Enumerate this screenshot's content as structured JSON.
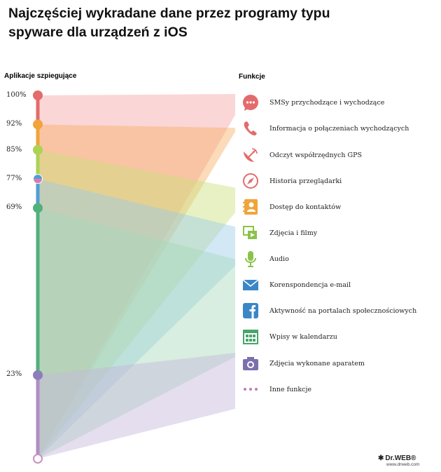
{
  "title": {
    "line1": "Najczęściej wykradane dane przez programy typu",
    "line2": "spyware dla urządzeń z iOS"
  },
  "headings": {
    "axis": "Aplikacje szpiegujące",
    "functions": "Funkcje"
  },
  "chart_data": {
    "type": "area",
    "title": "Najczęściej wykradane dane przez programy typu spyware dla urządzeń z iOS",
    "ylabel": "Aplikacje szpiegujące",
    "ylim": [
      0,
      100
    ],
    "ticks": [
      {
        "value": 100,
        "label": "100%",
        "color": "#e46b6b"
      },
      {
        "value": 92,
        "label": "92%",
        "color": "#f0a43a"
      },
      {
        "value": 85,
        "label": "85%",
        "color": "#acd256"
      },
      {
        "value": 77,
        "label": "77%",
        "color": "#4f9fd4"
      },
      {
        "value": 69,
        "label": "69%",
        "color": "#52b07a"
      },
      {
        "value": 23,
        "label": "23%",
        "color": "#8c7dbd"
      }
    ],
    "categories": [
      "SMSy przychodzące i wychodzące",
      "Informacja o połączeniach wychodzących",
      "Odczyt współrzędnych GPS",
      "Historia przeglądarki",
      "Dostęp do kontaktów",
      "Zdjęcia i filmy",
      "Audio",
      "Korenspondencja e-mail",
      "Aktywność na portalach społecznościowych",
      "Wpisy w kalendarzu",
      "Zdjęcia wykonane aparatem",
      "Inne funkcje"
    ],
    "values": [
      100,
      92,
      85,
      77,
      77,
      77,
      69,
      69,
      69,
      23,
      23,
      23
    ],
    "colors": [
      "#f7a5a7",
      "#f7b063",
      "#c9df7d",
      "#9ccbe8",
      "#a7d9bc",
      "#c5b6da"
    ]
  },
  "functions": [
    {
      "label": "SMSy przychodzące i wychodzące",
      "icon": "chat-bubble-icon",
      "color": "#e46b6b"
    },
    {
      "label": "Informacja o połączeniach wychodzących",
      "icon": "phone-icon",
      "color": "#e46b6b"
    },
    {
      "label": "Odczyt współrzędnych GPS",
      "icon": "satellite-dish-icon",
      "color": "#e46b6b"
    },
    {
      "label": "Historia przeglądarki",
      "icon": "compass-icon",
      "color": "#e46b6b"
    },
    {
      "label": "Dostęp do kontaktów",
      "icon": "address-book-icon",
      "color": "#f0a43a"
    },
    {
      "label": "Zdjęcia i filmy",
      "icon": "media-icon",
      "color": "#8bc34a"
    },
    {
      "label": "Audio",
      "icon": "microphone-icon",
      "color": "#8bc34a"
    },
    {
      "label": "Korenspondencja e-mail",
      "icon": "envelope-icon",
      "color": "#3b86c6"
    },
    {
      "label": "Aktywność na portalach społecznościowych",
      "icon": "facebook-icon",
      "color": "#3b86c6"
    },
    {
      "label": "Wpisy w kalendarzu",
      "icon": "calendar-icon",
      "color": "#49a56b"
    },
    {
      "label": "Zdjęcia wykonane aparatem",
      "icon": "camera-icon",
      "color": "#7d6fae"
    },
    {
      "label": "Inne funkcje",
      "icon": "more-dots-icon",
      "color": "#c37bb5"
    }
  ],
  "brand": {
    "logo": "Dr.WEB®",
    "url": "www.drweb.com"
  }
}
